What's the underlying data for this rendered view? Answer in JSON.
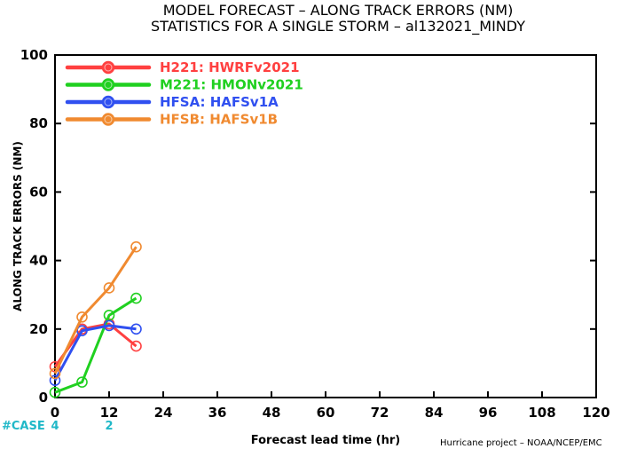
{
  "title_line1": "MODEL FORECAST – ALONG TRACK ERRORS (NM)",
  "title_line2": "STATISTICS FOR A SINGLE STORM – al132021_MINDY",
  "credit": "Hurricane project – NOAA/NCEP/EMC",
  "case_label": "#CASE",
  "case_counts": [
    {
      "x": 0,
      "n": "4"
    },
    {
      "x": 12,
      "n": "2"
    }
  ],
  "colors": {
    "case": "#20b8c8"
  },
  "chart_data": {
    "type": "line",
    "title": "MODEL FORECAST – ALONG TRACK ERRORS (NM)",
    "subtitle": "STATISTICS FOR A SINGLE STORM – al132021_MINDY",
    "xlabel": "Forecast lead time (hr)",
    "ylabel": "ALONG TRACK ERRORS (NM)",
    "xlim": [
      0,
      120
    ],
    "ylim": [
      0,
      100
    ],
    "xticks": [
      0,
      12,
      24,
      36,
      48,
      60,
      72,
      84,
      96,
      108,
      120
    ],
    "yticks": [
      0,
      20,
      40,
      60,
      80,
      100
    ],
    "grid": false,
    "legend_position": "top-left",
    "series": [
      {
        "id": "H221",
        "name": "H221: HWRFv2021",
        "color": "#ff4040",
        "x": [
          0,
          6,
          12,
          18
        ],
        "values": [
          9,
          20,
          21.5,
          15
        ]
      },
      {
        "id": "M221",
        "name": "M221: HMONv2021",
        "color": "#20d020",
        "x": [
          0,
          6,
          12,
          18
        ],
        "values": [
          1.5,
          4.5,
          24,
          29
        ]
      },
      {
        "id": "HFSA",
        "name": "HFSA: HAFSv1A",
        "color": "#3050f0",
        "x": [
          0,
          6,
          12,
          18
        ],
        "values": [
          5,
          19.5,
          21,
          20
        ]
      },
      {
        "id": "HFSB",
        "name": "HFSB: HAFSv1B",
        "color": "#f08a30",
        "x": [
          0,
          6,
          12,
          18
        ],
        "values": [
          7,
          23.5,
          32,
          44
        ]
      }
    ]
  }
}
